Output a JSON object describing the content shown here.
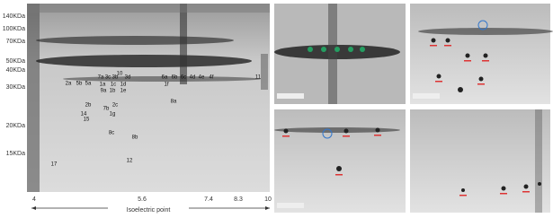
{
  "gel": {
    "y_labels": [
      "140KDa",
      "100KDa",
      "70KDa",
      "50KDa",
      "40KDa",
      "30KDa",
      "20KDa",
      "15KDa"
    ],
    "x_labels": [
      "4",
      "5.6",
      "7.4",
      "8.3",
      "10"
    ],
    "x_axis_title": "Isoelectric point",
    "spot_labels": [
      "10",
      "11",
      "2a",
      "5b",
      "5a",
      "7a",
      "3c",
      "3b",
      "3d",
      "6a",
      "6b",
      "6c",
      "4d",
      "4e",
      "4f",
      "1a",
      "1c",
      "1d",
      "1f",
      "9a",
      "1b",
      "1e",
      "2b",
      "2c",
      "7b",
      "8a",
      "14",
      "1g",
      "15",
      "8c",
      "8b",
      "12",
      "17"
    ]
  }
}
